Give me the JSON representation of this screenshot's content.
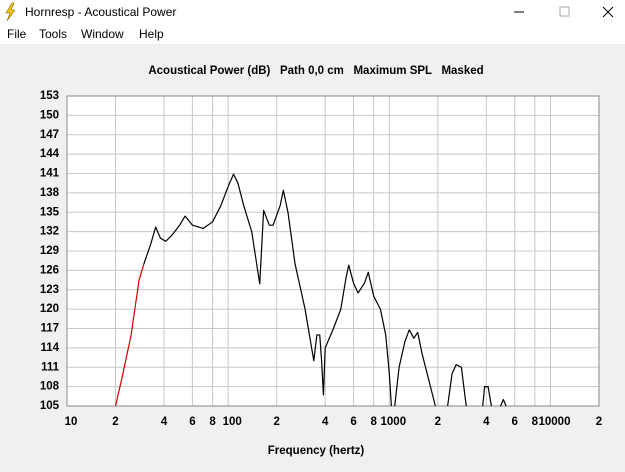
{
  "window_title": "Hornresp - Acoustical Power",
  "menu": [
    "File",
    "Tools",
    "Window",
    "Help"
  ],
  "chart_data": {
    "type": "line",
    "title": "Acoustical Power (dB)   Path 0,0 cm   Maximum SPL   Masked",
    "x_label": "Frequency (hertz)",
    "x_scale": "log",
    "xlim": [
      10,
      20000
    ],
    "ylim": [
      105,
      153
    ],
    "xticks": [
      10,
      {
        "value": 20,
        "label": "2"
      },
      {
        "value": 40,
        "label": "4"
      },
      {
        "value": 60,
        "label": "6"
      },
      {
        "value": 80,
        "label": "8"
      },
      100,
      {
        "value": 200,
        "label": "2"
      },
      {
        "value": 400,
        "label": "4"
      },
      {
        "value": 600,
        "label": "6"
      },
      {
        "value": 800,
        "label": "8"
      },
      1000,
      {
        "value": 2000,
        "label": "2"
      },
      {
        "value": 4000,
        "label": "4"
      },
      {
        "value": 6000,
        "label": "6"
      },
      {
        "value": 8000,
        "label": "8"
      },
      10000,
      {
        "value": 20000,
        "label": "2"
      }
    ],
    "yticks": [
      105,
      108,
      111,
      114,
      117,
      120,
      123,
      126,
      129,
      132,
      135,
      138,
      141,
      144,
      147,
      150,
      153
    ],
    "grid": true,
    "series": [
      {
        "color": "#d40000",
        "x": [
          20,
          22,
          25,
          28,
          30
        ],
        "values": [
          105,
          109.5,
          116,
          124.5,
          127
        ]
      },
      {
        "color": "#000000",
        "x": [
          30,
          33,
          35.5,
          38,
          41,
          45,
          50,
          54,
          60,
          70,
          80,
          90,
          100,
          108,
          115,
          125,
          140,
          157,
          166,
          180,
          190,
          210,
          220,
          235,
          260,
          300,
          340,
          355,
          370,
          380,
          390,
          400,
          450,
          500,
          540,
          560,
          600,
          640,
          700,
          740,
          800,
          880,
          950,
          1000,
          1030,
          1060,
          1080,
          1150,
          1250,
          1330,
          1420,
          1500,
          1600,
          1800,
          1930,
          2100,
          2300,
          2450,
          2600,
          2800,
          3000,
          3400,
          3800,
          3900,
          4100,
          4300,
          4600,
          4900,
          5100,
          5300
        ],
        "values": [
          127,
          130,
          132.7,
          131,
          130.5,
          131.5,
          133,
          134.4,
          133,
          132.5,
          133.5,
          136,
          139,
          140.9,
          139.5,
          136,
          132,
          123.9,
          135.3,
          133,
          133,
          136,
          138.4,
          135,
          127,
          120,
          112,
          116,
          116,
          112,
          106.7,
          114,
          117,
          120,
          125,
          126.8,
          124,
          122.5,
          124,
          125.7,
          122,
          120,
          116,
          110,
          105,
          null,
          105,
          111,
          115,
          116.8,
          115.5,
          116.4,
          113,
          108,
          105,
          null,
          105,
          110,
          111.4,
          111,
          105,
          null,
          105,
          108,
          108,
          105,
          null,
          105,
          106,
          105
        ]
      }
    ]
  }
}
